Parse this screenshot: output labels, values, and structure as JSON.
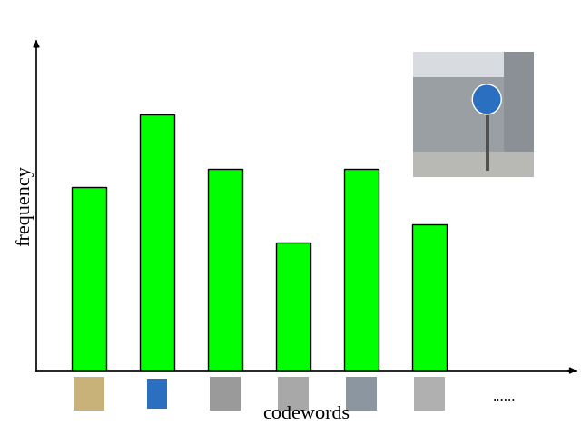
{
  "chart_data": {
    "type": "bar",
    "x_label": "codewords",
    "y_label": "frequency",
    "categories": [
      null,
      null,
      null,
      null,
      null,
      null
    ],
    "values": [
      200,
      280,
      220,
      140,
      220,
      160
    ],
    "color": "#00ff00",
    "ylim": [
      0,
      360
    ],
    "yticks": [],
    "tick_labels": false,
    "annotations": [
      "......"
    ]
  }
}
